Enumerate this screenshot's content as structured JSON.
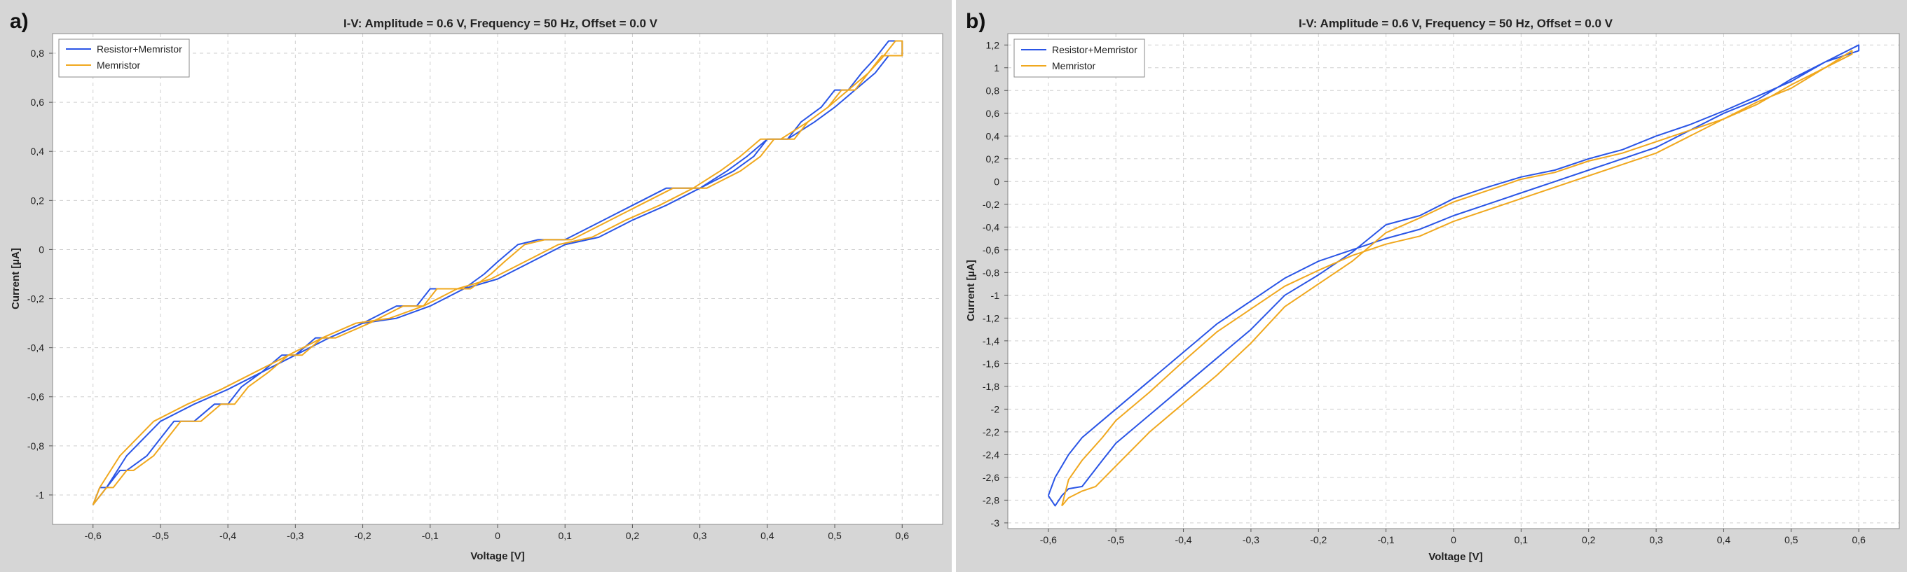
{
  "panel_letters": [
    "a)",
    "b)"
  ],
  "legend": {
    "series_a": "Resistor+Memristor",
    "series_b": "Memristor"
  },
  "chart_data": [
    {
      "type": "line",
      "panel": "a)",
      "title": "I-V: Amplitude = 0.6 V, Frequency = 50 Hz, Offset = 0.0 V",
      "xlabel": "Voltage [V]",
      "ylabel": "Current [µA]",
      "xlim": [
        -0.66,
        0.66
      ],
      "ylim": [
        -1.12,
        0.88
      ],
      "grid": true,
      "legend_position": "top-left",
      "x_ticks": [
        -0.6,
        -0.5,
        -0.4,
        -0.3,
        -0.2,
        -0.1,
        0,
        0.1,
        0.2,
        0.3,
        0.4,
        0.5,
        0.6
      ],
      "x_tick_labels": [
        "-0,6",
        "-0,5",
        "-0,4",
        "-0,3",
        "-0,2",
        "-0,1",
        "0",
        "0,1",
        "0,2",
        "0,3",
        "0,4",
        "0,5",
        "0,6"
      ],
      "y_ticks": [
        -1,
        -0.8,
        -0.6,
        -0.4,
        -0.2,
        0,
        0.2,
        0.4,
        0.6,
        0.8
      ],
      "y_tick_labels": [
        "-1",
        "-0,8",
        "-0,6",
        "-0,4",
        "-0,2",
        "0",
        "0,2",
        "0,4",
        "0,6",
        "0,8"
      ],
      "series": [
        {
          "name": "Resistor+Memristor",
          "color": "#2a55e6",
          "x": [
            -0.6,
            -0.59,
            -0.58,
            -0.56,
            -0.55,
            -0.52,
            -0.5,
            -0.48,
            -0.45,
            -0.42,
            -0.4,
            -0.38,
            -0.35,
            -0.32,
            -0.3,
            -0.27,
            -0.25,
            -0.2,
            -0.15,
            -0.12,
            -0.1,
            -0.05,
            -0.02,
            0.0,
            0.03,
            0.06,
            0.1,
            0.15,
            0.2,
            0.25,
            0.3,
            0.35,
            0.38,
            0.4,
            0.43,
            0.45,
            0.48,
            0.5,
            0.52,
            0.54,
            0.56,
            0.58,
            0.6,
            0.6,
            0.58,
            0.56,
            0.53,
            0.5,
            0.47,
            0.43,
            0.4,
            0.37,
            0.34,
            0.3,
            0.25,
            0.2,
            0.15,
            0.1,
            0.05,
            0.0,
            -0.05,
            -0.1,
            -0.15,
            -0.2,
            -0.25,
            -0.3,
            -0.35,
            -0.4,
            -0.45,
            -0.5,
            -0.55,
            -0.58,
            -0.6
          ],
          "y": [
            -1.04,
            -0.97,
            -0.97,
            -0.9,
            -0.9,
            -0.84,
            -0.77,
            -0.7,
            -0.7,
            -0.63,
            -0.63,
            -0.56,
            -0.5,
            -0.43,
            -0.43,
            -0.36,
            -0.36,
            -0.3,
            -0.23,
            -0.23,
            -0.16,
            -0.16,
            -0.1,
            -0.05,
            0.02,
            0.04,
            0.04,
            0.11,
            0.18,
            0.25,
            0.25,
            0.32,
            0.38,
            0.45,
            0.45,
            0.52,
            0.58,
            0.65,
            0.65,
            0.72,
            0.78,
            0.85,
            0.85,
            0.79,
            0.79,
            0.72,
            0.65,
            0.58,
            0.52,
            0.45,
            0.45,
            0.38,
            0.32,
            0.25,
            0.18,
            0.12,
            0.05,
            0.02,
            -0.05,
            -0.12,
            -0.16,
            -0.23,
            -0.28,
            -0.3,
            -0.36,
            -0.43,
            -0.5,
            -0.57,
            -0.63,
            -0.7,
            -0.84,
            -0.97,
            -1.04
          ]
        },
        {
          "name": "Memristor",
          "color": "#f0a81e",
          "x": [
            -0.6,
            -0.58,
            -0.57,
            -0.55,
            -0.54,
            -0.51,
            -0.49,
            -0.47,
            -0.44,
            -0.41,
            -0.39,
            -0.37,
            -0.34,
            -0.31,
            -0.29,
            -0.26,
            -0.24,
            -0.19,
            -0.14,
            -0.11,
            -0.09,
            -0.04,
            -0.01,
            0.01,
            0.04,
            0.07,
            0.11,
            0.16,
            0.21,
            0.26,
            0.31,
            0.36,
            0.39,
            0.41,
            0.44,
            0.46,
            0.49,
            0.51,
            0.53,
            0.55,
            0.57,
            0.59,
            0.6,
            0.6,
            0.57,
            0.55,
            0.52,
            0.49,
            0.46,
            0.42,
            0.39,
            0.36,
            0.33,
            0.29,
            0.24,
            0.19,
            0.14,
            0.09,
            0.04,
            -0.01,
            -0.06,
            -0.11,
            -0.16,
            -0.21,
            -0.26,
            -0.31,
            -0.36,
            -0.41,
            -0.46,
            -0.51,
            -0.56,
            -0.59,
            -0.6
          ],
          "y": [
            -1.04,
            -0.97,
            -0.97,
            -0.9,
            -0.9,
            -0.84,
            -0.77,
            -0.7,
            -0.7,
            -0.63,
            -0.63,
            -0.56,
            -0.5,
            -0.43,
            -0.43,
            -0.36,
            -0.36,
            -0.3,
            -0.23,
            -0.23,
            -0.16,
            -0.16,
            -0.1,
            -0.05,
            0.02,
            0.04,
            0.04,
            0.11,
            0.18,
            0.25,
            0.25,
            0.32,
            0.38,
            0.45,
            0.45,
            0.52,
            0.58,
            0.65,
            0.65,
            0.72,
            0.78,
            0.85,
            0.85,
            0.79,
            0.79,
            0.72,
            0.65,
            0.58,
            0.52,
            0.45,
            0.45,
            0.38,
            0.32,
            0.25,
            0.18,
            0.12,
            0.05,
            0.02,
            -0.05,
            -0.12,
            -0.16,
            -0.23,
            -0.28,
            -0.3,
            -0.36,
            -0.43,
            -0.5,
            -0.57,
            -0.63,
            -0.7,
            -0.84,
            -0.97,
            -1.04
          ]
        }
      ]
    },
    {
      "type": "line",
      "panel": "b)",
      "title": "I-V: Amplitude = 0.6 V, Frequency = 50 Hz, Offset = 0.0 V",
      "xlabel": "Voltage [V]",
      "ylabel": "Current [µA]",
      "xlim": [
        -0.66,
        0.66
      ],
      "ylim": [
        -3.05,
        1.3
      ],
      "grid": true,
      "legend_position": "top-left",
      "x_ticks": [
        -0.6,
        -0.5,
        -0.4,
        -0.3,
        -0.2,
        -0.1,
        0,
        0.1,
        0.2,
        0.3,
        0.4,
        0.5,
        0.6
      ],
      "x_tick_labels": [
        "-0,6",
        "-0,5",
        "-0,4",
        "-0,3",
        "-0,2",
        "-0,1",
        "0",
        "0,1",
        "0,2",
        "0,3",
        "0,4",
        "0,5",
        "0,6"
      ],
      "y_ticks": [
        -3,
        -2.8,
        -2.6,
        -2.4,
        -2.2,
        -2,
        -1.8,
        -1.6,
        -1.4,
        -1.2,
        -1,
        -0.8,
        -0.6,
        -0.4,
        -0.2,
        0,
        0.2,
        0.4,
        0.6,
        0.8,
        1,
        1.2
      ],
      "y_tick_labels": [
        "-3",
        "-2,8",
        "-2,6",
        "-2,4",
        "-2,2",
        "-2",
        "-1,8",
        "-1,6",
        "-1,4",
        "-1,2",
        "-1",
        "-0,8",
        "-0,6",
        "-0,4",
        "-0,2",
        "0",
        "0,2",
        "0,4",
        "0,6",
        "0,8",
        "1",
        "1,2"
      ],
      "series": [
        {
          "name": "Resistor+Memristor",
          "color": "#2a55e6",
          "x": [
            -0.6,
            -0.59,
            -0.58,
            -0.57,
            -0.55,
            -0.52,
            -0.5,
            -0.45,
            -0.4,
            -0.35,
            -0.3,
            -0.25,
            -0.2,
            -0.15,
            -0.1,
            -0.05,
            0.0,
            0.05,
            0.1,
            0.15,
            0.2,
            0.25,
            0.3,
            0.35,
            0.4,
            0.45,
            0.5,
            0.55,
            0.6,
            0.6,
            0.55,
            0.5,
            0.45,
            0.4,
            0.35,
            0.3,
            0.25,
            0.2,
            0.15,
            0.1,
            0.05,
            0.0,
            -0.05,
            -0.1,
            -0.15,
            -0.2,
            -0.25,
            -0.3,
            -0.35,
            -0.4,
            -0.45,
            -0.5,
            -0.53,
            -0.55,
            -0.57,
            -0.59,
            -0.6
          ],
          "y": [
            -2.76,
            -2.85,
            -2.76,
            -2.7,
            -2.68,
            -2.45,
            -2.3,
            -2.05,
            -1.8,
            -1.55,
            -1.3,
            -1.0,
            -0.82,
            -0.62,
            -0.38,
            -0.3,
            -0.15,
            -0.05,
            0.04,
            0.1,
            0.2,
            0.28,
            0.4,
            0.5,
            0.62,
            0.75,
            0.88,
            1.05,
            1.2,
            1.15,
            1.05,
            0.9,
            0.72,
            0.6,
            0.45,
            0.3,
            0.2,
            0.1,
            0.0,
            -0.1,
            -0.2,
            -0.3,
            -0.42,
            -0.5,
            -0.6,
            -0.7,
            -0.85,
            -1.05,
            -1.25,
            -1.5,
            -1.75,
            -2.0,
            -2.15,
            -2.25,
            -2.4,
            -2.6,
            -2.76
          ]
        },
        {
          "name": "Memristor",
          "color": "#f0a81e",
          "x": [
            -0.58,
            -0.57,
            -0.55,
            -0.53,
            -0.5,
            -0.45,
            -0.4,
            -0.35,
            -0.3,
            -0.25,
            -0.2,
            -0.15,
            -0.1,
            -0.05,
            0.0,
            0.05,
            0.1,
            0.15,
            0.2,
            0.25,
            0.3,
            0.35,
            0.4,
            0.45,
            0.5,
            0.55,
            0.59,
            0.59,
            0.55,
            0.5,
            0.45,
            0.4,
            0.35,
            0.3,
            0.25,
            0.2,
            0.15,
            0.1,
            0.05,
            0.0,
            -0.05,
            -0.1,
            -0.15,
            -0.2,
            -0.25,
            -0.3,
            -0.35,
            -0.4,
            -0.45,
            -0.5,
            -0.52,
            -0.55,
            -0.57,
            -0.58
          ],
          "y": [
            -2.85,
            -2.78,
            -2.72,
            -2.68,
            -2.5,
            -2.2,
            -1.95,
            -1.7,
            -1.42,
            -1.1,
            -0.9,
            -0.7,
            -0.45,
            -0.32,
            -0.18,
            -0.08,
            0.02,
            0.08,
            0.18,
            0.25,
            0.35,
            0.45,
            0.55,
            0.7,
            0.82,
            1.0,
            1.15,
            1.12,
            1.0,
            0.85,
            0.68,
            0.55,
            0.4,
            0.25,
            0.15,
            0.05,
            -0.05,
            -0.15,
            -0.25,
            -0.35,
            -0.48,
            -0.55,
            -0.65,
            -0.78,
            -0.92,
            -1.12,
            -1.32,
            -1.58,
            -1.85,
            -2.1,
            -2.25,
            -2.45,
            -2.62,
            -2.85
          ]
        }
      ]
    }
  ]
}
